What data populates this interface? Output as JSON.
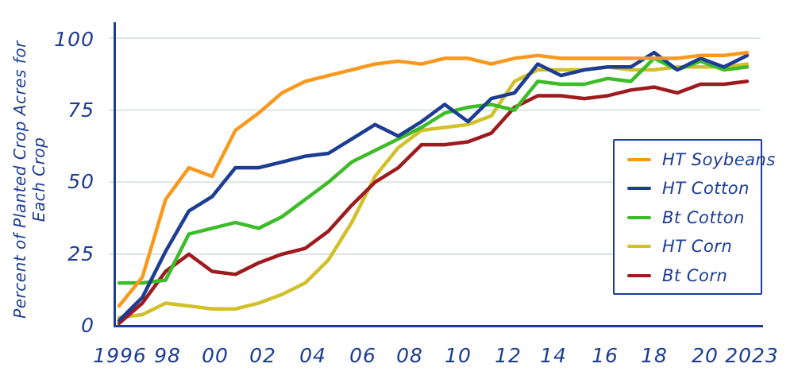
{
  "chart": {
    "y_axis_title": "Percent of Planted Crop Acres for Each Crop",
    "y_ticks": [
      "100",
      "75",
      "50",
      "25",
      "0"
    ],
    "x_ticks": [
      "1996",
      "98",
      "00",
      "02",
      "04",
      "06",
      "08",
      "10",
      "12",
      "14",
      "16",
      "18",
      "20",
      "2023"
    ],
    "legend": [
      {
        "label": "HT Soybeans",
        "color": "#f8991d"
      },
      {
        "label": "HT Cotton",
        "color": "#1c3d92"
      },
      {
        "label": "Bt Cotton",
        "color": "#3cbc27"
      },
      {
        "label": "HT Corn",
        "color": "#d2c02a"
      },
      {
        "label": "Bt Corn",
        "color": "#9d1b1e"
      }
    ],
    "colors": {
      "axis": "#1c3d92",
      "grid": "#dce5e2",
      "background": "#ffffff"
    }
  },
  "chart_data": {
    "type": "line",
    "title": "",
    "xlabel": "",
    "ylabel": "Percent of Planted Crop Acres for Each Crop",
    "ylim": [
      0,
      100
    ],
    "xlim": [
      1996,
      2023
    ],
    "grid": true,
    "gridline_values": [
      25,
      50,
      75,
      100
    ],
    "legend_position": "right",
    "x": [
      1996,
      1997,
      1998,
      1999,
      2000,
      2001,
      2002,
      2003,
      2004,
      2005,
      2006,
      2007,
      2008,
      2009,
      2010,
      2011,
      2012,
      2013,
      2014,
      2015,
      2016,
      2017,
      2018,
      2019,
      2020,
      2021,
      2022,
      2023
    ],
    "series": [
      {
        "name": "HT Soybeans",
        "color": "#f8991d",
        "values": [
          7,
          17,
          44,
          55,
          52,
          68,
          74,
          81,
          85,
          87,
          89,
          91,
          92,
          91,
          93,
          93,
          91,
          93,
          94,
          93,
          93,
          93,
          93,
          93,
          93,
          94,
          94,
          95
        ]
      },
      {
        "name": "HT Cotton",
        "color": "#1c3d92",
        "values": [
          2,
          10,
          26,
          40,
          45,
          55,
          55,
          57,
          59,
          60,
          65,
          70,
          66,
          71,
          77,
          71,
          79,
          81,
          91,
          87,
          89,
          90,
          90,
          95,
          89,
          93,
          90,
          94
        ]
      },
      {
        "name": "Bt Cotton",
        "color": "#3cbc27",
        "values": [
          15,
          15,
          16,
          32,
          34,
          36,
          34,
          38,
          44,
          50,
          57,
          61,
          65,
          69,
          74,
          76,
          77,
          75,
          85,
          84,
          84,
          86,
          85,
          93,
          89,
          92,
          89,
          90
        ]
      },
      {
        "name": "HT Corn",
        "color": "#d2c02a",
        "values": [
          3,
          4,
          8,
          7,
          6,
          6,
          8,
          11,
          15,
          23,
          36,
          52,
          62,
          68,
          69,
          70,
          73,
          85,
          89,
          89,
          89,
          90,
          89,
          89,
          90,
          90,
          90,
          91
        ]
      },
      {
        "name": "Bt Corn",
        "color": "#9d1b1e",
        "values": [
          1,
          8,
          19,
          25,
          19,
          18,
          22,
          25,
          27,
          33,
          42,
          50,
          55,
          63,
          63,
          64,
          67,
          76,
          80,
          80,
          79,
          80,
          82,
          83,
          81,
          84,
          84,
          85
        ]
      }
    ]
  }
}
